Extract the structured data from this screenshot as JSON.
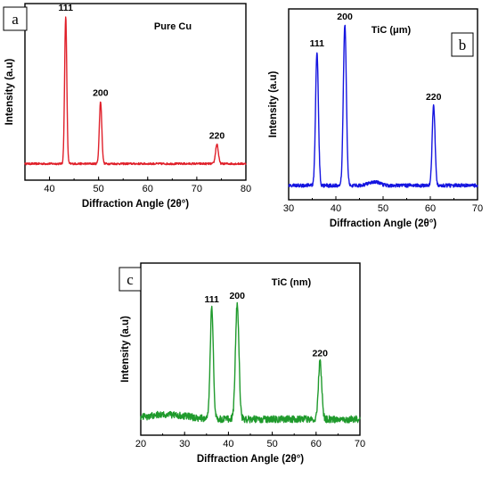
{
  "chart_data": [
    {
      "type": "line",
      "panel_label": "a",
      "title": "Pure Cu",
      "xlabel": "Diffraction Angle (2θ°)",
      "ylabel": "Intensity (a.u)",
      "xlim": [
        35,
        80
      ],
      "ylim": [
        0,
        100
      ],
      "xticks": [
        40,
        50,
        60,
        70,
        80
      ],
      "color": "#e0202a",
      "baseline": 10,
      "noise": 0.6,
      "peaks": [
        {
          "label": "111",
          "x": 43.3,
          "height": 100,
          "width": 0.22
        },
        {
          "label": "200",
          "x": 50.4,
          "height": 48,
          "width": 0.25
        },
        {
          "label": "220",
          "x": 74.1,
          "height": 22,
          "width": 0.28
        }
      ]
    },
    {
      "type": "line",
      "panel_label": "b",
      "title": "TiC (μm)",
      "xlabel": "Diffraction Angle (2θ°)",
      "ylabel": "Intensity (a.u)",
      "xlim": [
        30,
        70
      ],
      "ylim": [
        0,
        100
      ],
      "xticks": [
        30,
        40,
        50,
        60,
        70
      ],
      "color": "#1515e0",
      "baseline": 8,
      "noise": 1.0,
      "peaks": [
        {
          "label": "111",
          "x": 36.0,
          "height": 83,
          "width": 0.3
        },
        {
          "label": "200",
          "x": 41.9,
          "height": 98,
          "width": 0.32
        },
        {
          "label": "220",
          "x": 60.7,
          "height": 53,
          "width": 0.3
        }
      ]
    },
    {
      "type": "line",
      "panel_label": "c",
      "title": "TiC (nm)",
      "xlabel": "Diffraction Angle (2θ°)",
      "ylabel": "Intensity (a.u)",
      "xlim": [
        20,
        70
      ],
      "ylim": [
        0,
        100
      ],
      "xticks": [
        20,
        30,
        40,
        50,
        60,
        70
      ],
      "color": "#1f9a2c",
      "baseline": 10,
      "noise": 2.2,
      "peaks": [
        {
          "label": "111",
          "x": 36.2,
          "height": 80,
          "width": 0.35
        },
        {
          "label": "200",
          "x": 42.0,
          "height": 82,
          "width": 0.4
        },
        {
          "label": "220",
          "x": 60.9,
          "height": 46,
          "width": 0.38
        },
        {
          "label": "",
          "x": 32.8,
          "height": 10,
          "width": 0.08
        }
      ]
    }
  ]
}
